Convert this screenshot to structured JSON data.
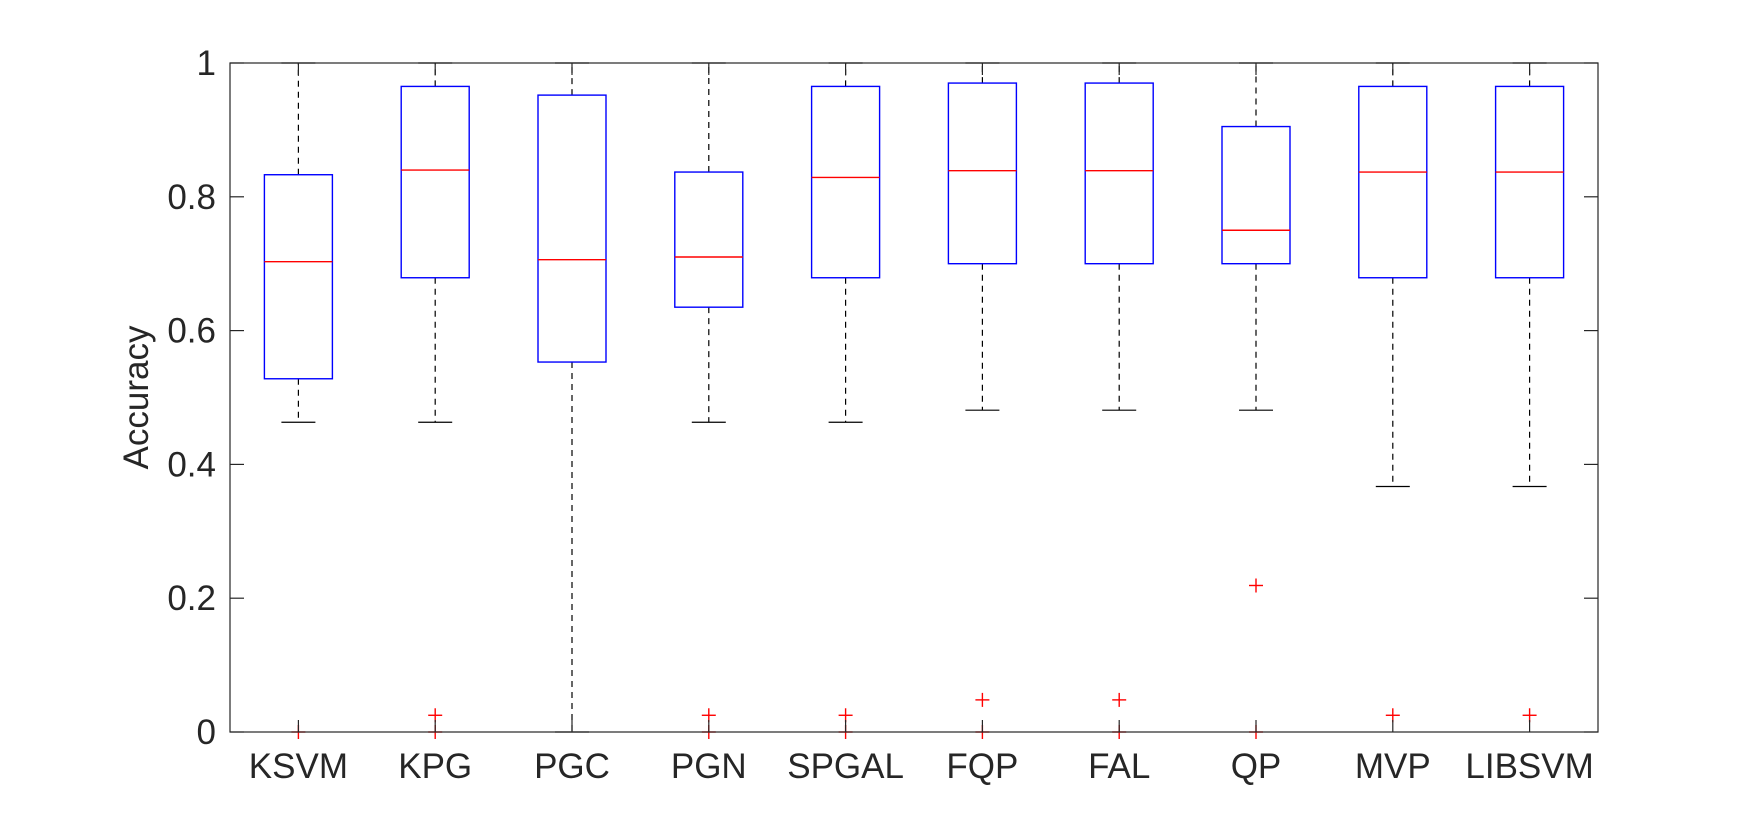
{
  "chart_data": {
    "type": "boxplot",
    "ylabel": "Accuracy",
    "ylim": [
      0,
      1
    ],
    "yticks": [
      "0",
      "0.2",
      "0.4",
      "0.6",
      "0.8",
      "1"
    ],
    "ytick_values": [
      0,
      0.2,
      0.4,
      0.6,
      0.8,
      1
    ],
    "categories": [
      "KSVM",
      "KPG",
      "PGC",
      "PGN",
      "SPGAL",
      "FQP",
      "FAL",
      "QP",
      "MVP",
      "LIBSVM"
    ],
    "boxes": [
      {
        "name": "KSVM",
        "whisker_low": 0.463,
        "q1": 0.528,
        "median": 0.703,
        "q3": 0.833,
        "whisker_high": 1.0,
        "outliers": [
          0.0
        ]
      },
      {
        "name": "KPG",
        "whisker_low": 0.463,
        "q1": 0.679,
        "median": 0.84,
        "q3": 0.965,
        "whisker_high": 1.0,
        "outliers": [
          0.0,
          0.025
        ]
      },
      {
        "name": "PGC",
        "whisker_low": 0.0,
        "q1": 0.553,
        "median": 0.706,
        "q3": 0.952,
        "whisker_high": 1.0,
        "outliers": []
      },
      {
        "name": "PGN",
        "whisker_low": 0.463,
        "q1": 0.635,
        "median": 0.71,
        "q3": 0.837,
        "whisker_high": 1.0,
        "outliers": [
          0.0,
          0.025
        ]
      },
      {
        "name": "SPGAL",
        "whisker_low": 0.463,
        "q1": 0.679,
        "median": 0.829,
        "q3": 0.965,
        "whisker_high": 1.0,
        "outliers": [
          0.0,
          0.025
        ]
      },
      {
        "name": "FQP",
        "whisker_low": 0.481,
        "q1": 0.7,
        "median": 0.839,
        "q3": 0.97,
        "whisker_high": 1.0,
        "outliers": [
          0.0,
          0.048
        ]
      },
      {
        "name": "FAL",
        "whisker_low": 0.481,
        "q1": 0.7,
        "median": 0.839,
        "q3": 0.97,
        "whisker_high": 1.0,
        "outliers": [
          0.0,
          0.048
        ]
      },
      {
        "name": "QP",
        "whisker_low": 0.481,
        "q1": 0.7,
        "median": 0.75,
        "q3": 0.905,
        "whisker_high": 1.0,
        "outliers": [
          0.0,
          0.219
        ]
      },
      {
        "name": "MVP",
        "whisker_low": 0.367,
        "q1": 0.679,
        "median": 0.837,
        "q3": 0.965,
        "whisker_high": 1.0,
        "outliers": [
          0.025
        ]
      },
      {
        "name": "LIBSVM",
        "whisker_low": 0.367,
        "q1": 0.679,
        "median": 0.837,
        "q3": 0.965,
        "whisker_high": 1.0,
        "outliers": [
          0.025
        ]
      }
    ],
    "grid": false,
    "colors": {
      "box": "#0000ff",
      "median": "#ff0000",
      "outlier": "#ff0000",
      "whisker": "#000000",
      "axis": "#262626"
    }
  }
}
